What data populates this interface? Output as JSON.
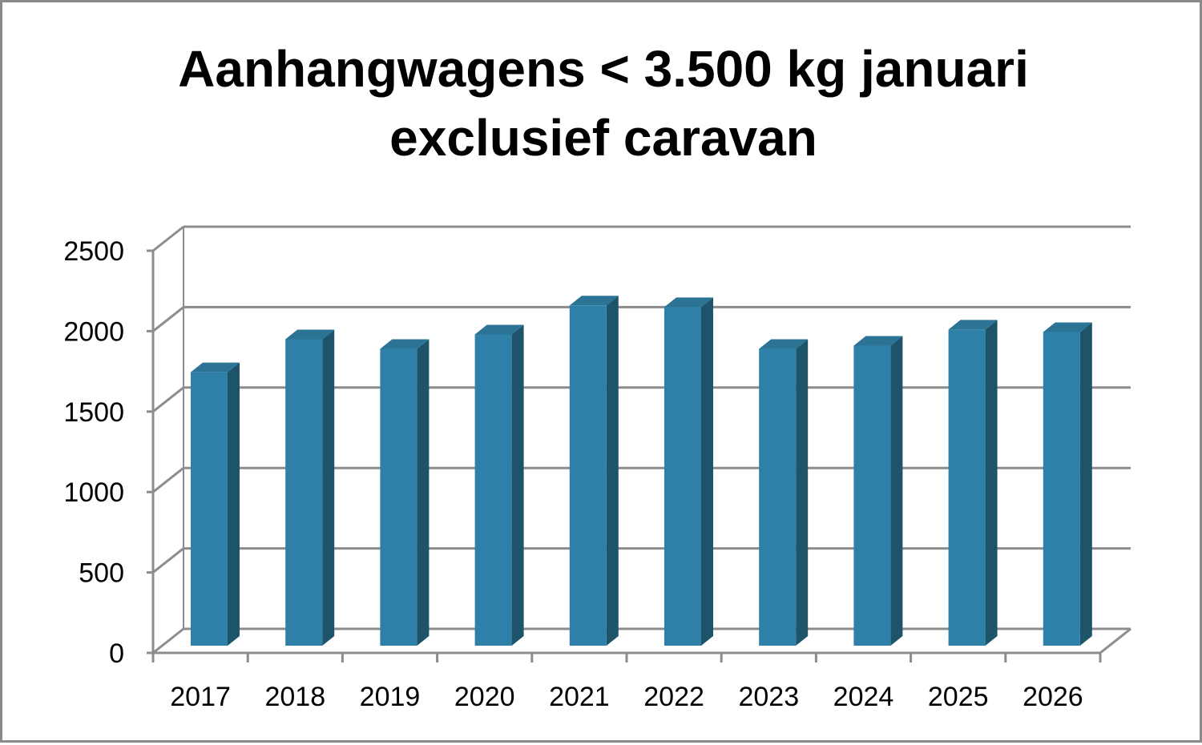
{
  "chart_data": {
    "type": "bar",
    "title": [
      "Aanhangwagens < 3.500 kg januari",
      "exclusief caravan"
    ],
    "categories": [
      "2017",
      "2018",
      "2019",
      "2020",
      "2021",
      "2022",
      "2023",
      "2024",
      "2025",
      "2026"
    ],
    "values": [
      1700,
      1905,
      1845,
      1935,
      2115,
      2105,
      1845,
      1865,
      1965,
      1950
    ],
    "ylim": [
      0,
      2500
    ],
    "yticks": [
      "0",
      "500",
      "1000",
      "1500",
      "2000",
      "2500"
    ],
    "xlabel": "",
    "ylabel": "",
    "grid": true,
    "legend": "none",
    "colors": {
      "bar_front": "#2e80a8",
      "bar_side": "#1d5469",
      "bar_top": "#2b7496",
      "grid": "#8c8c8c"
    }
  }
}
